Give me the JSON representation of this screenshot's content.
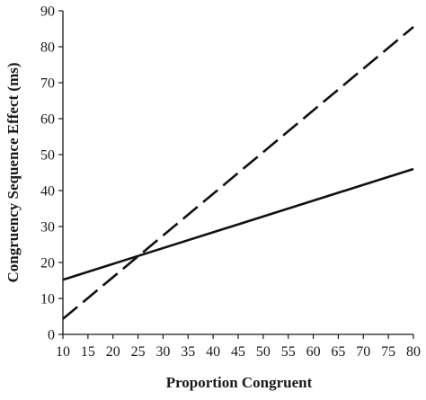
{
  "chart_data": {
    "type": "line",
    "title": "",
    "xlabel": "Proportion Congruent",
    "ylabel": "Congruency Sequence Effect (ms)",
    "xlim": [
      10,
      80
    ],
    "ylim": [
      0,
      90
    ],
    "xticks": [
      "10",
      "15",
      "20",
      "25",
      "30",
      "35",
      "40",
      "45",
      "50",
      "55",
      "60",
      "65",
      "70",
      "75",
      "80"
    ],
    "yticks": [
      "0",
      "10",
      "20",
      "30",
      "40",
      "50",
      "60",
      "70",
      "80",
      "90"
    ],
    "grid": false,
    "legend": "none",
    "series": [
      {
        "style": "solid",
        "color": "#111111",
        "x": [
          10,
          80
        ],
        "y": [
          15.2,
          46
        ]
      },
      {
        "style": "dashed",
        "color": "#111111",
        "x": [
          10,
          80
        ],
        "y": [
          4.3,
          85.5
        ]
      }
    ]
  }
}
